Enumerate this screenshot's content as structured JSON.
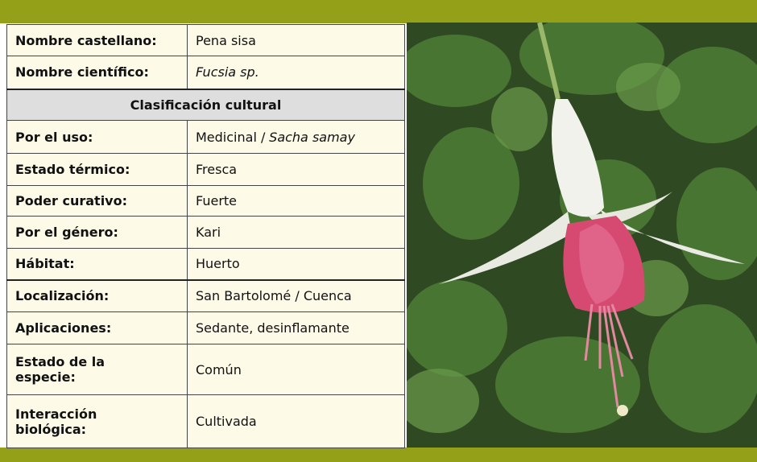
{
  "table": {
    "rows": [
      {
        "label": "Nombre castellano:",
        "value": "Pena sisa"
      },
      {
        "label": "Nombre científico:",
        "value_italic": "Fucsia sp."
      }
    ],
    "section": "Clasificación cultural",
    "section_rows": [
      {
        "label": "Por el uso:",
        "value": "Medicinal /",
        "value_italic": "Sacha samay"
      },
      {
        "label": "Estado térmico:",
        "value": "Fresca"
      },
      {
        "label": "Poder curativo:",
        "value": "Fuerte"
      },
      {
        "label": "Por el género:",
        "value": "Kari"
      },
      {
        "label": "Hábitat:",
        "value": "Huerto"
      }
    ],
    "extra_rows": [
      {
        "label": "Localización:",
        "value": "San Bartolomé / Cuenca"
      },
      {
        "label": "Aplicaciones:",
        "value": "Sedante, desinflamante"
      },
      {
        "label": [
          "Estado de la",
          "especie:"
        ],
        "value": "Común"
      },
      {
        "label": [
          "Interacción",
          "biológica:"
        ],
        "value": "Cultivada"
      }
    ]
  }
}
